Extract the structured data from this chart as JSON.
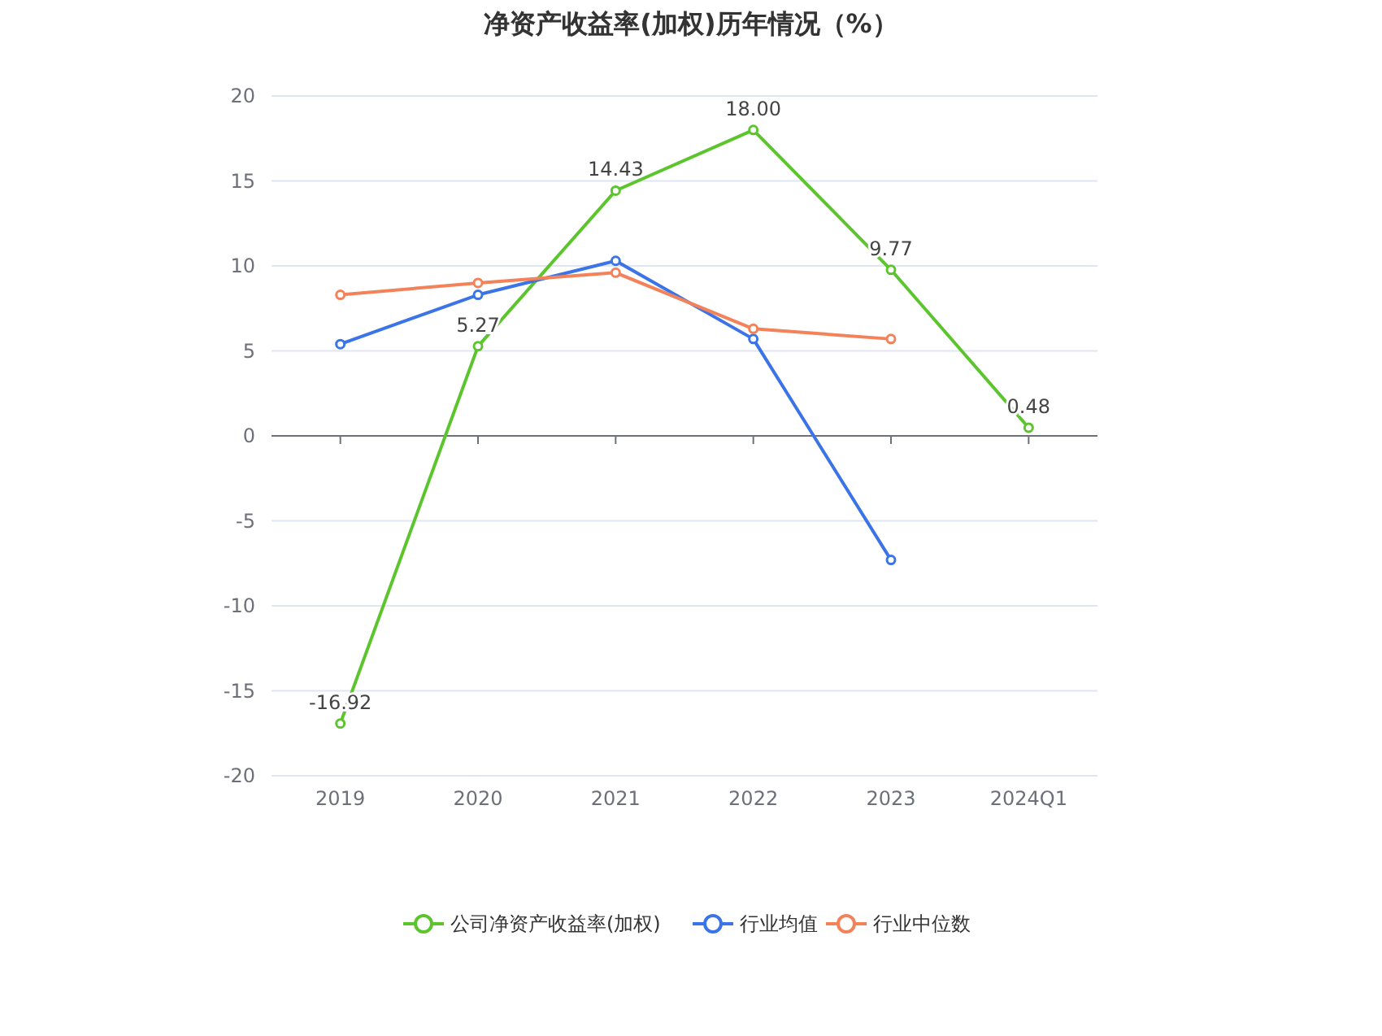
{
  "chart_data": {
    "type": "line",
    "title": "净资产收益率(加权)历年情况（%）",
    "categories": [
      "2019",
      "2020",
      "2021",
      "2022",
      "2023",
      "2024Q1"
    ],
    "series": [
      {
        "name": "公司净资产收益率(加权)",
        "color": "#5cc52e",
        "values": [
          -16.92,
          5.27,
          14.43,
          18.0,
          9.77,
          0.48
        ],
        "value_labels": [
          "-16.92",
          "5.27",
          "14.43",
          "18.00",
          "9.77",
          "0.48"
        ]
      },
      {
        "name": "行业均值",
        "color": "#3b74e6",
        "values": [
          5.4,
          8.3,
          10.3,
          5.7,
          -7.3,
          null
        ]
      },
      {
        "name": "行业中位数",
        "color": "#f3825a",
        "values": [
          8.3,
          9.0,
          9.6,
          6.3,
          5.7,
          null
        ]
      }
    ],
    "ylim": [
      -20,
      20
    ],
    "yticks": [
      -20,
      -15,
      -10,
      -5,
      0,
      5,
      10,
      15,
      20
    ],
    "grid": "y",
    "legend": "bottom",
    "marker": "circle",
    "line_style": "solid"
  }
}
